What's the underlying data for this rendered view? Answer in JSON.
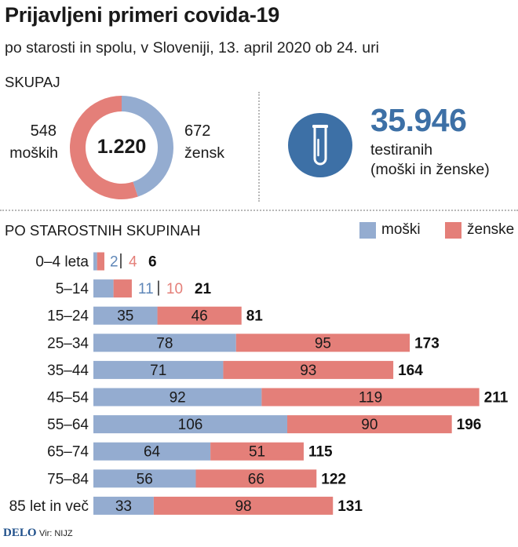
{
  "header": {
    "title": "Prijavljeni primeri covida-19",
    "subtitle": "po starosti in spolu, v Sloveniji, 13. april 2020 ob 24. uri"
  },
  "totals": {
    "section_label": "SKUPAJ",
    "total": "1.220",
    "male_count": "548",
    "male_word": "moških",
    "female_count": "672",
    "female_word": "žensk"
  },
  "tests": {
    "value": "35.946",
    "line1": "testiranih",
    "line2": "(moški in ženske)",
    "icon": "test-tube-icon"
  },
  "colors": {
    "male": "#94acd0",
    "female": "#e47f79",
    "accent": "#3d70a6"
  },
  "legend": {
    "male": "moški",
    "female": "ženske"
  },
  "age_section_label": "PO STAROSTNIH SKUPINAH",
  "chart_data": [
    {
      "type": "pie",
      "title": "",
      "categories": [
        "moški",
        "ženske"
      ],
      "values": [
        548,
        672
      ]
    },
    {
      "type": "bar",
      "orientation": "horizontal",
      "stacked": true,
      "title": "PO STAROSTNIH SKUPINAH",
      "categories": [
        "0–4 leta",
        "5–14",
        "15–24",
        "25–34",
        "35–44",
        "45–54",
        "55–64",
        "65–74",
        "75–84",
        "85 let in več"
      ],
      "series": [
        {
          "name": "moški",
          "values": [
            2,
            11,
            35,
            78,
            71,
            92,
            106,
            64,
            56,
            33
          ]
        },
        {
          "name": "ženske",
          "values": [
            4,
            10,
            46,
            95,
            93,
            119,
            90,
            51,
            66,
            98
          ]
        }
      ],
      "totals": [
        6,
        21,
        81,
        173,
        164,
        211,
        196,
        115,
        122,
        131
      ],
      "legend": "top-right",
      "grid": false
    }
  ],
  "footer": {
    "brand": "DELO",
    "source": "Vir: NIJZ"
  }
}
